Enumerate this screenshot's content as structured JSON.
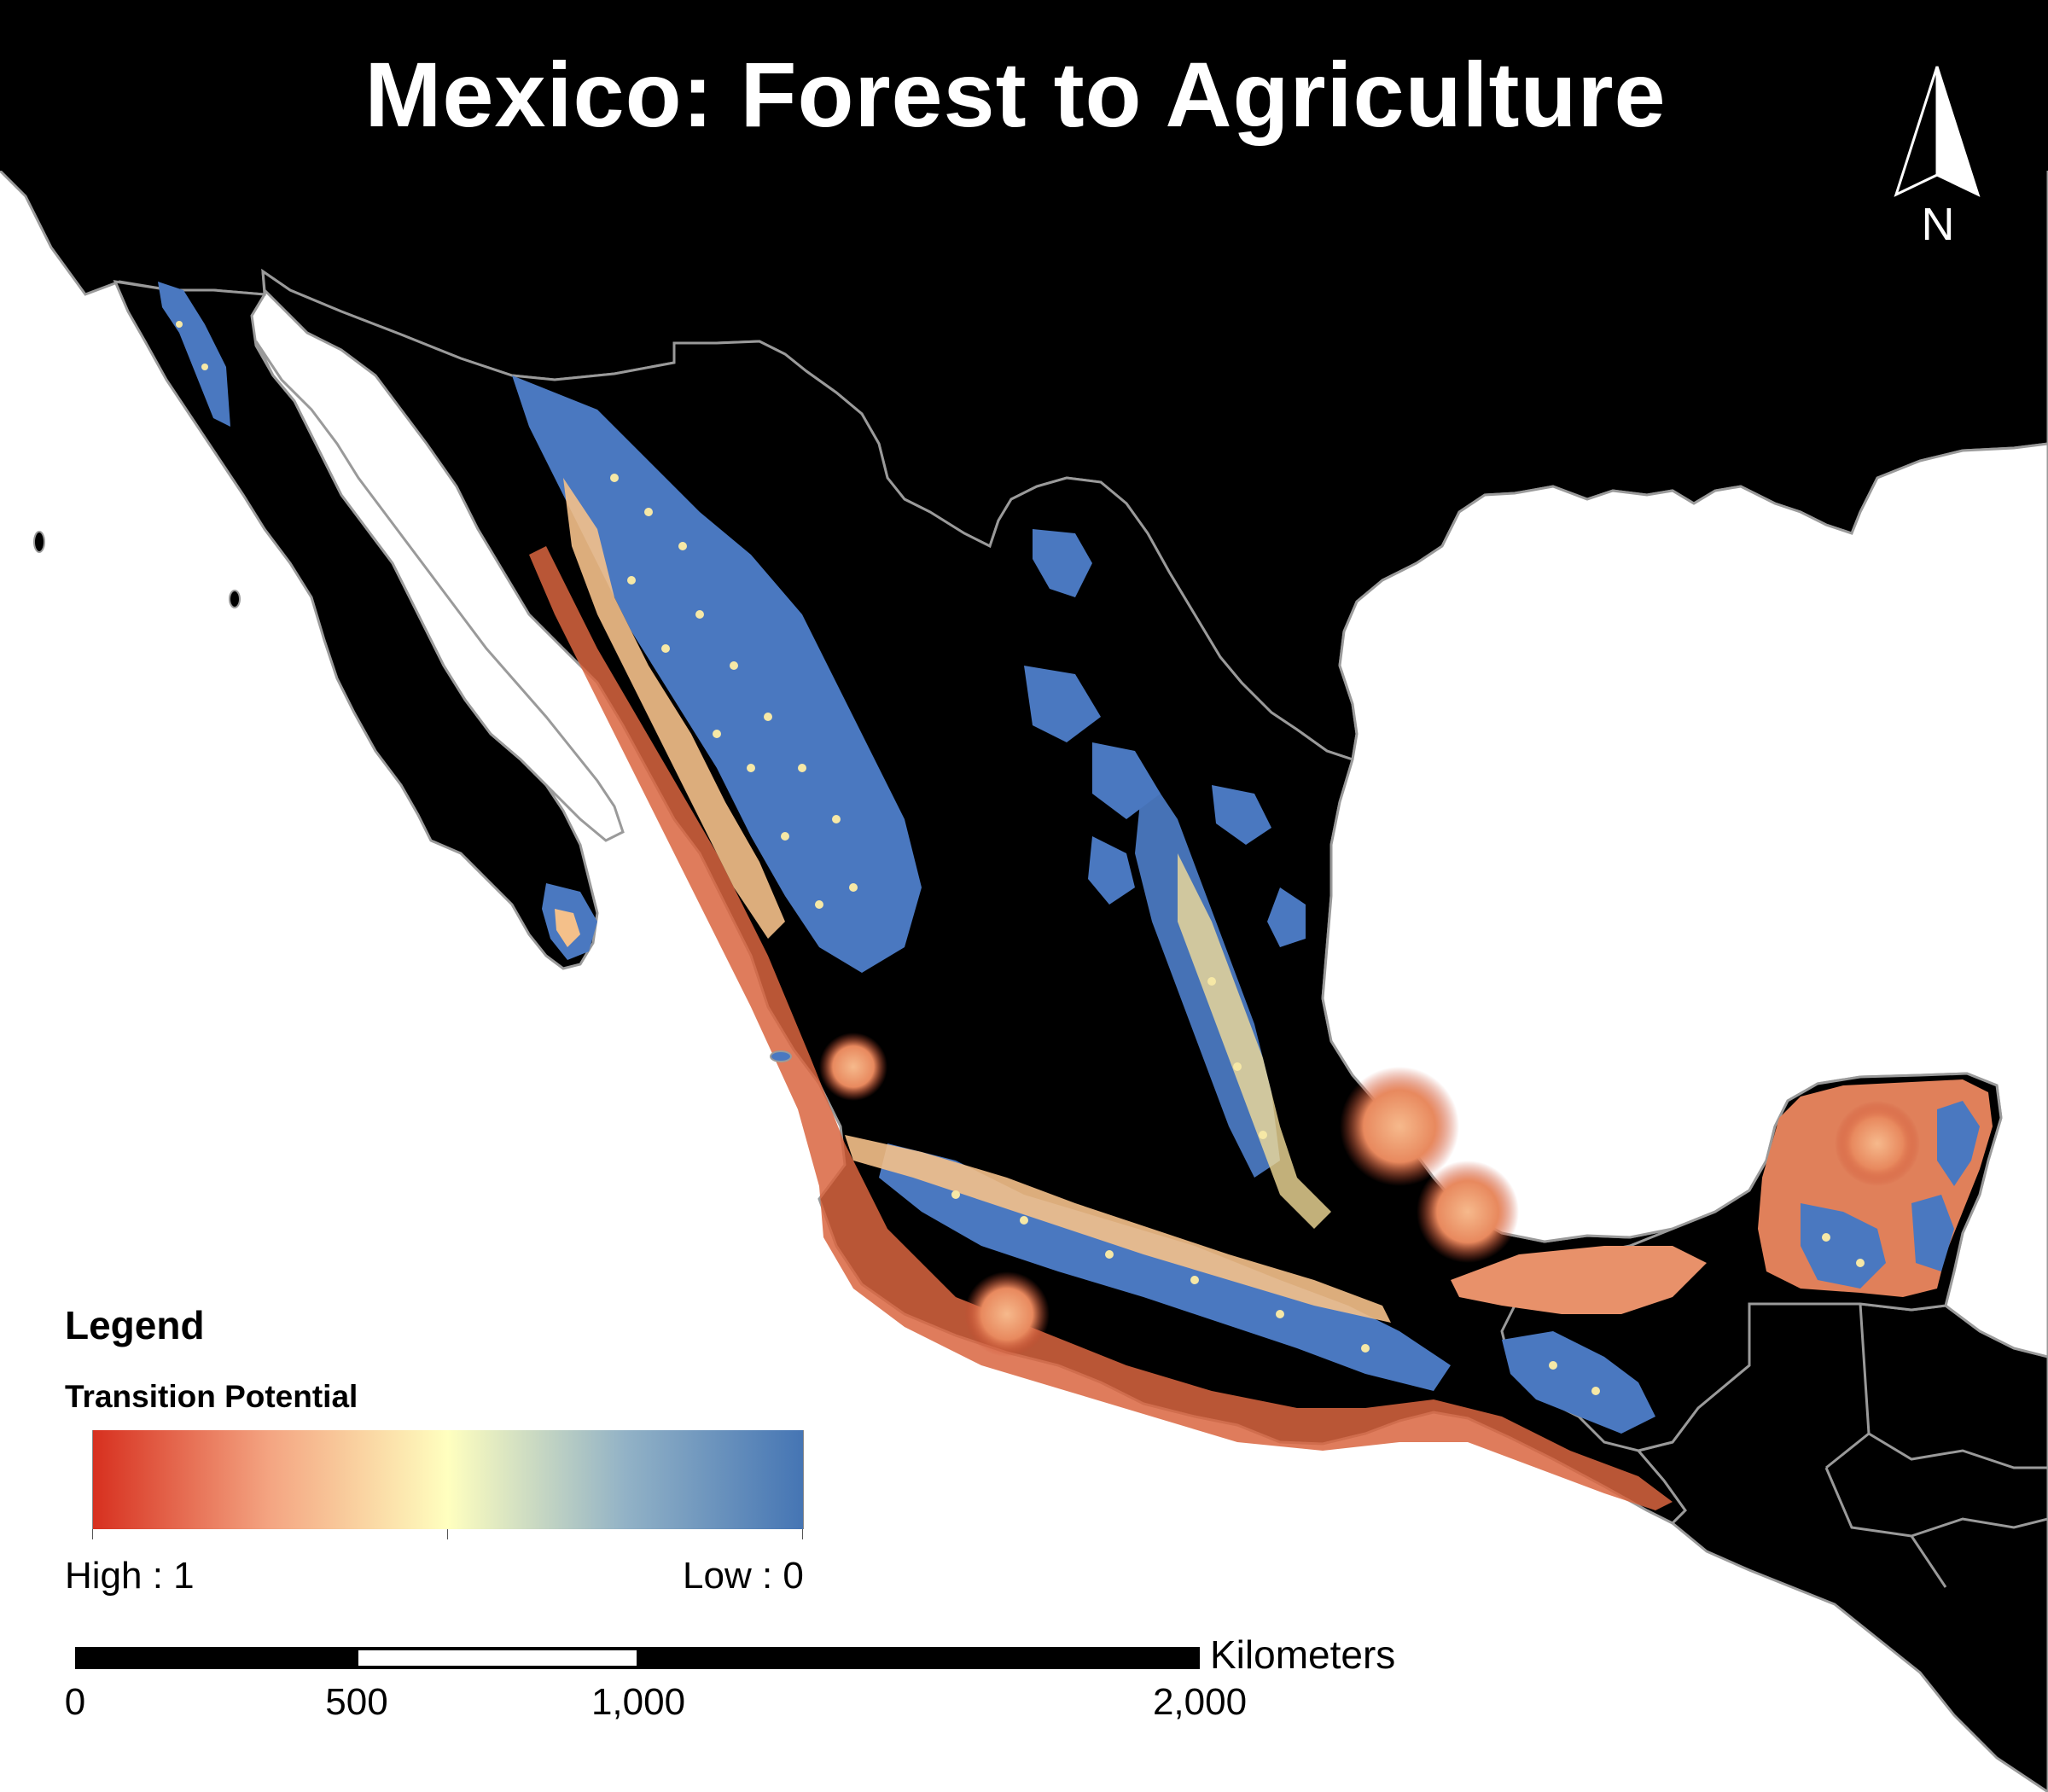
{
  "title": "Mexico: Forest to Agriculture",
  "north_arrow": {
    "label": "N",
    "icon": "north-arrow-icon"
  },
  "legend": {
    "title": "Legend",
    "subtitle": "Transition Potential",
    "high_label": "High : 1",
    "low_label": "Low : 0",
    "ramp_colors": [
      "#d7301f",
      "#f4a582",
      "#ffffbf",
      "#92b2c6",
      "#4575b4"
    ]
  },
  "scale_bar": {
    "unit": "Kilometers",
    "labels": [
      "0",
      "500",
      "1,000",
      "2,000"
    ]
  },
  "colors": {
    "ocean": "#ffffff",
    "land": "#000000",
    "borders": "#9a9a9a",
    "low_potential": "#4a78c0",
    "high_potential": "#e34a33"
  }
}
